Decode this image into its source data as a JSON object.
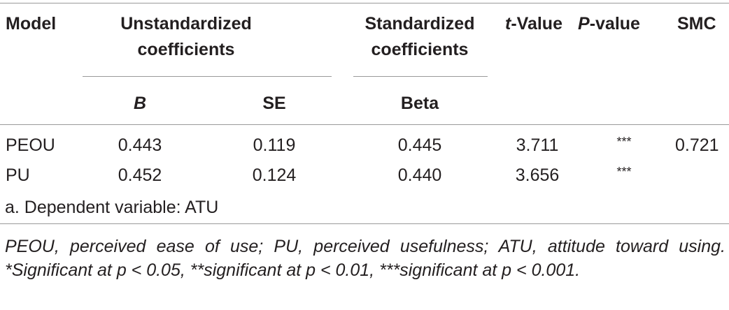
{
  "table": {
    "headers": {
      "model": "Model",
      "unstd_line1": "Unstandardized",
      "unstd_line2": "coefficients",
      "std_line1": "Standardized",
      "std_line2": "coefficients",
      "t_letter": "t",
      "t_rest": "-Value",
      "p_letter": "P",
      "p_rest": "-value",
      "smc": "SMC",
      "b": "B",
      "se": "SE",
      "beta": "Beta"
    },
    "rows": [
      {
        "model": "PEOU",
        "b": "0.443",
        "se": "0.119",
        "beta": "0.445",
        "t": "3.711",
        "p": "***",
        "smc": "0.721"
      },
      {
        "model": "PU",
        "b": "0.452",
        "se": "0.124",
        "beta": "0.440",
        "t": "3.656",
        "p": "***",
        "smc": ""
      }
    ],
    "footnote": "a. Dependent variable: ATU"
  },
  "note": "PEOU, perceived ease of use; PU, perceived usefulness; ATU, attitude toward using. *Significant at p < 0.05, **significant at p < 0.01, ***significant at p < 0.001."
}
